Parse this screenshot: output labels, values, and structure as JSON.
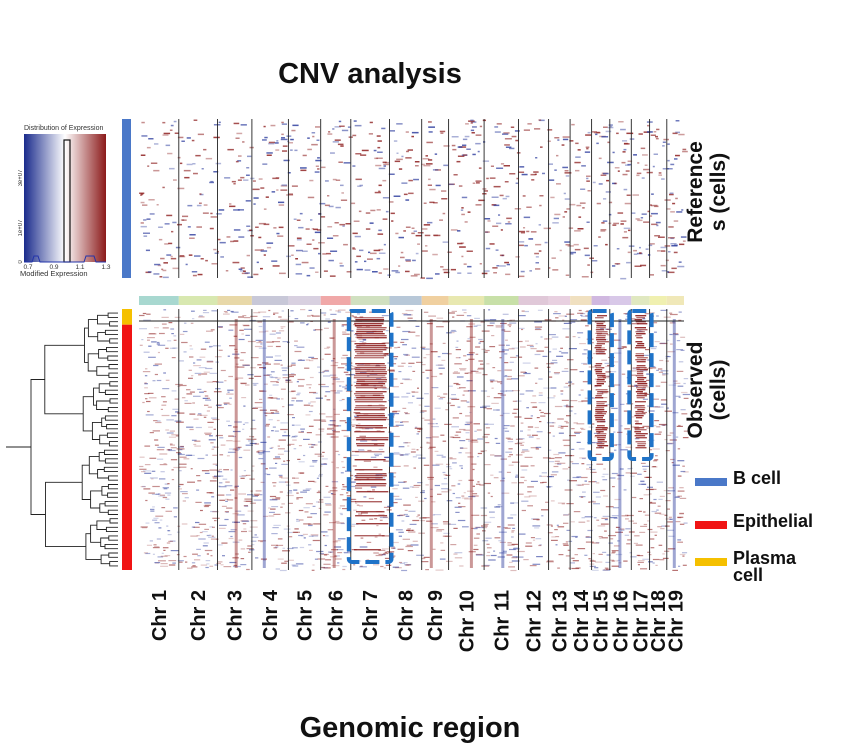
{
  "chart_data": {
    "type": "heatmap",
    "title": "CNV analysis",
    "xlabel": "Genomic region",
    "panels": [
      {
        "name": "reference",
        "label": [
          "Reference",
          "s (cells)"
        ],
        "annotation_color": "#4A78C8"
      },
      {
        "name": "observed",
        "label": [
          "Observed",
          "(cells)"
        ]
      }
    ],
    "chromosomes": [
      "Chr 1",
      "Chr 2",
      "Chr 3",
      "Chr 4",
      "Chr 5",
      "Chr 6",
      "Chr 7",
      "Chr 8",
      "Chr 9",
      "Chr 10",
      "Chr 11",
      "Chr 12",
      "Chr 13",
      "Chr 14",
      "Chr 15",
      "Chr 16",
      "Chr 17",
      "Chr 18",
      "Chr 19"
    ],
    "chromosome_relative_widths": [
      37,
      36,
      32,
      34,
      30,
      28,
      36,
      30,
      25,
      33,
      32,
      28,
      20,
      20,
      17,
      20,
      17,
      16,
      16
    ],
    "highlighted_gains": [
      "Chr 7",
      "Chr 15",
      "Chr 17"
    ],
    "color_scale": {
      "low": "#1A2B8C",
      "mid": "#FFFFFF",
      "high": "#8B1A1A",
      "key_title": "Distribution of Expression",
      "key_xlabel": "Modified Expression",
      "key_ticks_x": [
        "0.7",
        "0.9",
        "1.1",
        "1.3"
      ],
      "key_ticks_y": [
        "0",
        "1e+07",
        "3e+07"
      ]
    },
    "legend": [
      {
        "label": "B cell",
        "color": "#4A78C8"
      },
      {
        "label": "Epithelial",
        "color": "#F01414"
      },
      {
        "label": "Plasma cell",
        "color": "#F5C000"
      }
    ],
    "observed_annotation": [
      {
        "label": "Plasma cell",
        "fraction": 0.06,
        "color": "#F5C000"
      },
      {
        "label": "Epithelial",
        "fraction": 0.94,
        "color": "#F01414"
      }
    ]
  }
}
